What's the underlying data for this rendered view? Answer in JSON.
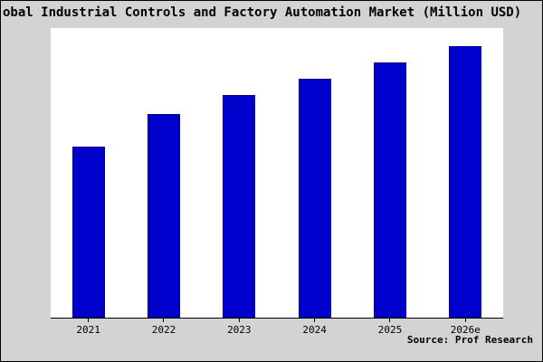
{
  "chart_data": {
    "type": "bar",
    "title": "obal Industrial Controls and Factory Automation Market (Million USD)",
    "categories": [
      "2021",
      "2022",
      "2023",
      "2024",
      "2025",
      "2026e"
    ],
    "values": [
      63,
      75,
      82,
      88,
      94,
      100
    ],
    "ylim": [
      0,
      100
    ],
    "xlabel": "",
    "ylabel": "",
    "grid": false,
    "legend": false,
    "bar_color": "#0000cd",
    "bar_border_color": "#00008b",
    "background_color": "#d3d3d3",
    "plot_background": "#ffffff",
    "source": "Source: Prof Research"
  }
}
